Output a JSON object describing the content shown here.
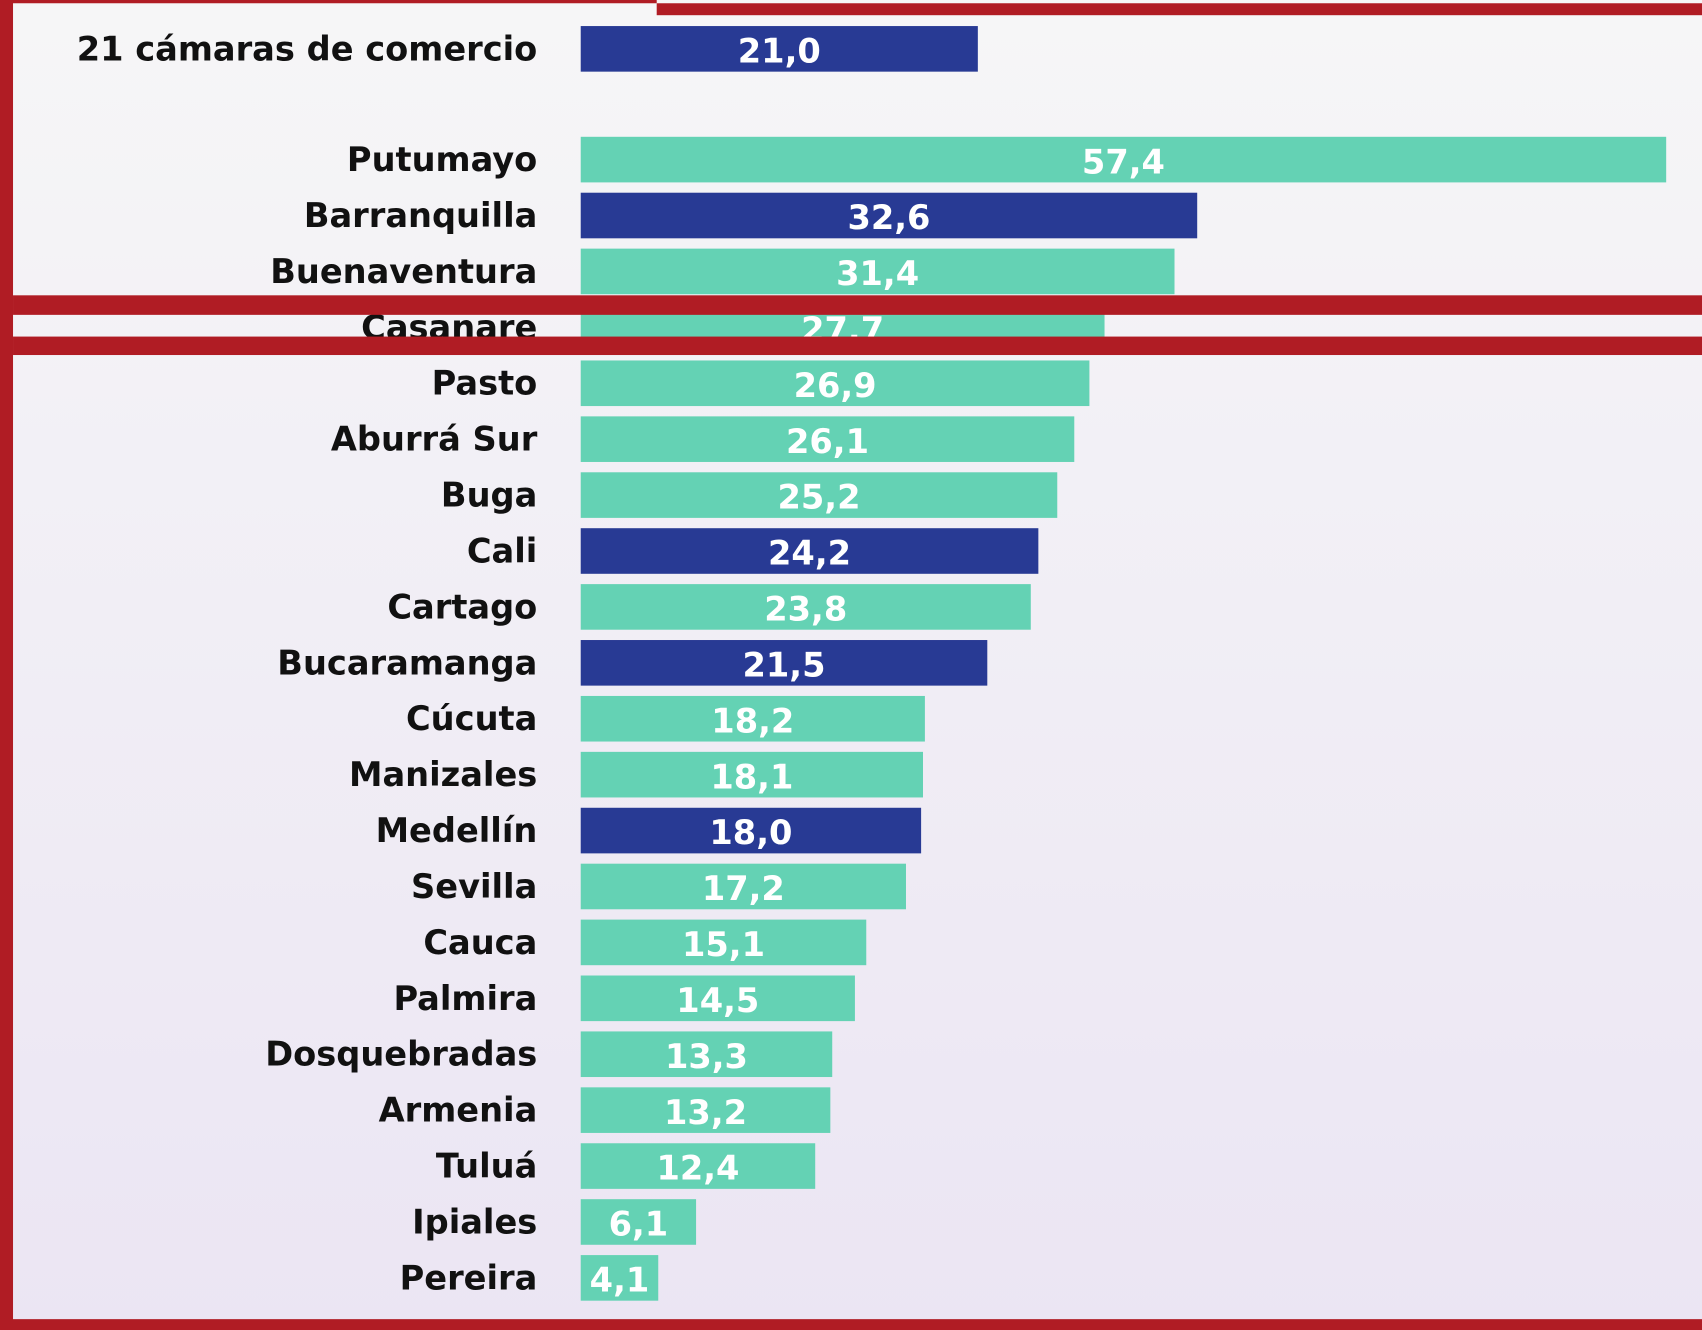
{
  "chart_data": {
    "type": "bar",
    "orientation": "horizontal",
    "categories": [
      "21 cámaras de comercio",
      "Putumayo",
      "Barranquilla",
      "Buenaventura",
      "Casanare",
      "Pasto",
      "Aburrá Sur",
      "Buga",
      "Cali",
      "Cartago",
      "Bucaramanga",
      "Cúcuta",
      "Manizales",
      "Medellín",
      "Sevilla",
      "Cauca",
      "Palmira",
      "Dosquebradas",
      "Armenia",
      "Tuluá",
      "Ipiales",
      "Pereira"
    ],
    "values": [
      21.0,
      57.4,
      32.6,
      31.4,
      27.7,
      26.9,
      26.1,
      25.2,
      24.2,
      23.8,
      21.5,
      18.2,
      18.1,
      18.0,
      17.2,
      15.1,
      14.5,
      13.3,
      13.2,
      12.4,
      6.1,
      4.1
    ],
    "value_labels": [
      "21,0",
      "57,4",
      "32,6",
      "31,4",
      "27,7",
      "26,9",
      "26,1",
      "25,2",
      "24,2",
      "23,8",
      "21,5",
      "18,2",
      "18,1",
      "18,0",
      "17,2",
      "15,1",
      "14,5",
      "13,3",
      "13,2",
      "12,4",
      "6,1",
      "4,1"
    ],
    "colors": [
      "#283a94",
      "#64d2b4",
      "#283a94",
      "#64d2b4",
      "#64d2b4",
      "#64d2b4",
      "#64d2b4",
      "#64d2b4",
      "#283a94",
      "#64d2b4",
      "#283a94",
      "#64d2b4",
      "#64d2b4",
      "#283a94",
      "#64d2b4",
      "#64d2b4",
      "#64d2b4",
      "#64d2b4",
      "#64d2b4",
      "#64d2b4",
      "#64d2b4",
      "#64d2b4"
    ]
  }
}
